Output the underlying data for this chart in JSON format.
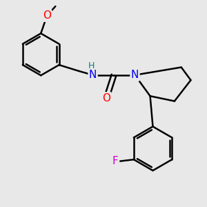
{
  "background_color": "#e8e8e8",
  "bond_color": "#000000",
  "bond_width": 1.8,
  "atom_colors": {
    "O": "#ff0000",
    "N": "#0000ee",
    "F": "#cc00cc",
    "H": "#008080",
    "C": "#000000"
  },
  "font_size": 10,
  "fig_width": 3.0,
  "fig_height": 3.0,
  "dpi": 100,
  "xlim": [
    -1.5,
    4.5
  ],
  "ylim": [
    -3.5,
    2.5
  ]
}
